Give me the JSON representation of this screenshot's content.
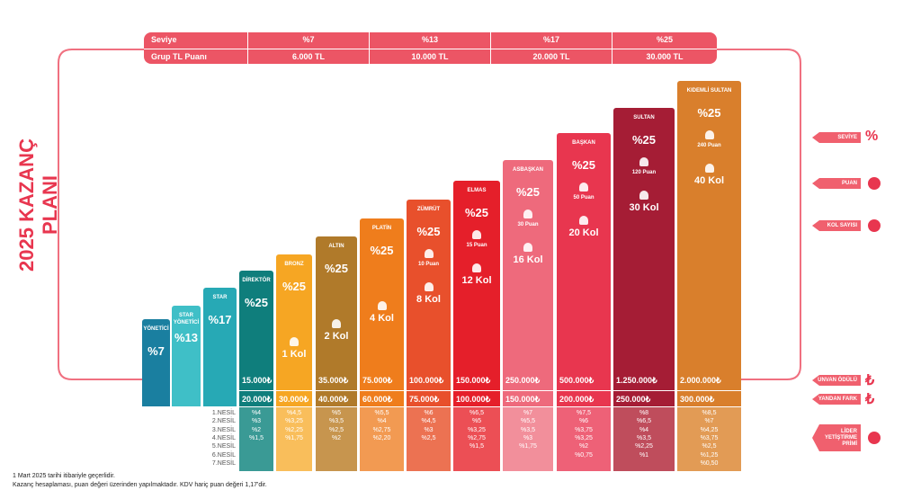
{
  "title": "2025 KAZANÇ PLANI",
  "top_table": {
    "rows": [
      [
        "Seviye",
        "%7",
        "%13",
        "%17",
        "%25"
      ],
      [
        "Grup TL Puanı",
        "6.000 TL",
        "10.000 TL",
        "20.000 TL",
        "30.000 TL"
      ]
    ]
  },
  "ranks": [
    {
      "name": "YÖNETİCİ",
      "percent": "%7"
    },
    {
      "name": "STAR YÖNETİCİ",
      "percent": "%13"
    },
    {
      "name": "STAR",
      "percent": "%17"
    },
    {
      "name": "DİREKTÖR",
      "percent": "%25",
      "award": "15.000₺",
      "side_bonus": "20.000₺",
      "generations": [
        "%4",
        "%3",
        "%2",
        "%1,5"
      ]
    },
    {
      "name": "BRONZ",
      "percent": "%25",
      "branches": "1 Kol",
      "side_bonus": "30.000₺",
      "generations": [
        "%4,5",
        "%3,25",
        "%2,25",
        "%1,75"
      ]
    },
    {
      "name": "ALTIN",
      "percent": "%25",
      "branches": "2 Kol",
      "award": "35.000₺",
      "side_bonus": "40.000₺",
      "generations": [
        "%5",
        "%3,5",
        "%2,5",
        "%2"
      ]
    },
    {
      "name": "PLATİN",
      "percent": "%25",
      "branches": "4 Kol",
      "award": "75.000₺",
      "side_bonus": "60.000₺",
      "generations": [
        "%5,5",
        "%4",
        "%2,75",
        "%2,20"
      ]
    },
    {
      "name": "ZÜMRÜT",
      "percent": "%25",
      "points": "10 Puan",
      "branches": "8 Kol",
      "award": "100.000₺",
      "side_bonus": "75.000₺",
      "generations": [
        "%6",
        "%4,5",
        "%3",
        "%2,5"
      ]
    },
    {
      "name": "ELMAS",
      "percent": "%25",
      "points": "15 Puan",
      "branches": "12 Kol",
      "award": "150.000₺",
      "side_bonus": "100.000₺",
      "generations": [
        "%6,5",
        "%5",
        "%3,25",
        "%2,75",
        "%1,5"
      ]
    },
    {
      "name": "ASBAŞKAN",
      "percent": "%25",
      "points": "30 Puan",
      "branches": "16 Kol",
      "award": "250.000₺",
      "side_bonus": "150.000₺",
      "generations": [
        "%7",
        "%5,5",
        "%3,5",
        "%3",
        "%1,75"
      ]
    },
    {
      "name": "BAŞKAN",
      "percent": "%25",
      "points": "50 Puan",
      "branches": "20 Kol",
      "award": "500.000₺",
      "side_bonus": "200.000₺",
      "generations": [
        "%7,5",
        "%6",
        "%3,75",
        "%3,25",
        "%2",
        "%0,75"
      ]
    },
    {
      "name": "SULTAN",
      "percent": "%25",
      "points": "120 Puan",
      "branches": "30 Kol",
      "award": "1.250.000₺",
      "side_bonus": "250.000₺",
      "generations": [
        "%8",
        "%6,5",
        "%4",
        "%3,5",
        "%2,25",
        "%1"
      ]
    },
    {
      "name": "KIDEMLİ SULTAN",
      "percent": "%25",
      "points": "240 Puan",
      "branches": "40 Kol",
      "award": "2.000.000₺",
      "side_bonus": "300.000₺",
      "generations": [
        "%8,5",
        "%7",
        "%4,25",
        "%3,75",
        "%2,5",
        "%1,25",
        "%0,50"
      ]
    }
  ],
  "generation_labels": [
    "1.NESİL",
    "2.NESİL",
    "3.NESİL",
    "4.NESİL",
    "5.NESİL",
    "6.NESİL",
    "7.NESİL"
  ],
  "legend": {
    "level": "SEVİYE",
    "level_symbol": "%",
    "points": "PUAN",
    "branches": "KOL SAYISI",
    "award": "UNVAN ÖDÜLÜ",
    "side_bonus": "YANDAN FARK",
    "currency": "₺",
    "leader_bonus": "LİDER YETİŞTİRME PRİMİ"
  },
  "footnotes": [
    "1 Mart 2025 tarihi itibariyle geçerlidir.",
    "Kazanç hesaplaması, puan değeri üzerinden yapılmaktadır. KDV hariç puan değeri 1,17'dir."
  ]
}
